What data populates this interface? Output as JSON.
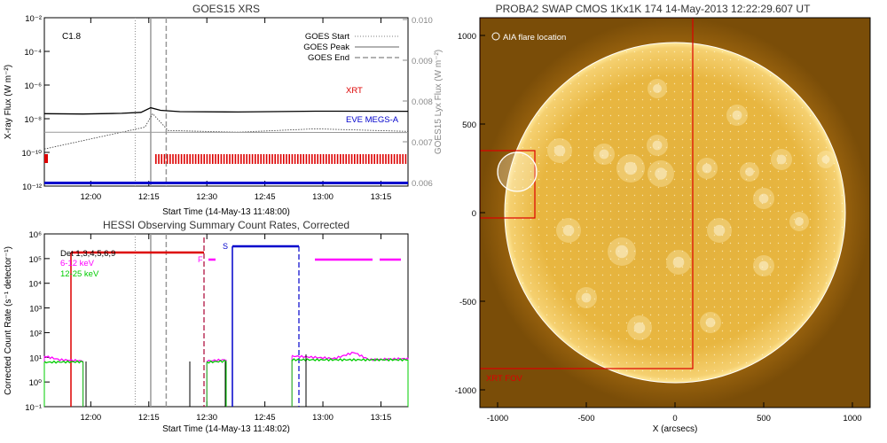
{
  "chart_data": [
    {
      "type": "line",
      "title": "GOES15 XRS",
      "xlabel": "Start Time (14-May-13 11:48:00)",
      "ylabel": "X-ray Flux (W m⁻²)",
      "ylabel_right": "GOES15 Lyx Flux (W m⁻²)",
      "xticks": [
        "12:00",
        "12:15",
        "12:30",
        "12:45",
        "13:00",
        "13:15"
      ],
      "xtick_minutes": [
        12,
        27,
        42,
        57,
        72,
        87
      ],
      "xlim_minutes": [
        0,
        94
      ],
      "ylog_range": [
        -12,
        -2
      ],
      "yticks": [
        "10⁻¹²",
        "10⁻¹⁰",
        "10⁻⁸",
        "10⁻⁶",
        "10⁻⁴",
        "10⁻²"
      ],
      "yticks_right": [
        "0.006",
        "0.007",
        "0.008",
        "0.009",
        "0.010"
      ],
      "annotation_class": "C1.8",
      "legend": [
        {
          "name": "GOES Start",
          "style": "dotted"
        },
        {
          "name": "GOES Peak",
          "style": "solid"
        },
        {
          "name": "GOES End",
          "style": "dashed"
        }
      ],
      "event_lines_minutes": {
        "start": 23.5,
        "peak": 27.5,
        "end": 31.5
      },
      "labels": {
        "xrt": "XRT",
        "eve": "EVE MEGS-A"
      },
      "colors": {
        "xrt": "#dd0000",
        "eve": "#0000cc",
        "event": "#999999"
      },
      "series": [
        {
          "name": "XRT",
          "points": [
            [
              0,
              -7.7
            ],
            [
              10,
              -7.72
            ],
            [
              20,
              -7.68
            ],
            [
              25,
              -7.62
            ],
            [
              27.5,
              -7.35
            ],
            [
              30,
              -7.5
            ],
            [
              35,
              -7.58
            ],
            [
              50,
              -7.6
            ],
            [
              70,
              -7.55
            ],
            [
              94,
              -7.56
            ]
          ]
        },
        {
          "name": "EVE MEGS-A",
          "points": [
            [
              0,
              -9.8
            ],
            [
              10,
              -9.3
            ],
            [
              20,
              -8.8
            ],
            [
              26,
              -8.5
            ],
            [
              28,
              -7.7
            ],
            [
              32,
              -8.7
            ],
            [
              50,
              -8.8
            ],
            [
              70,
              -8.6
            ],
            [
              94,
              -8.75
            ]
          ]
        }
      ]
    },
    {
      "type": "line",
      "title": "HESSI Observing Summary Count Rates, Corrected",
      "xlabel": "Start Time (14-May-13 11:48:02)",
      "ylabel": "Corrected Count Rate (s⁻¹ detector⁻¹)",
      "xticks": [
        "12:00",
        "12:15",
        "12:30",
        "12:45",
        "13:00",
        "13:15"
      ],
      "xtick_minutes": [
        12,
        27,
        42,
        57,
        72,
        87
      ],
      "xlim_minutes": [
        0,
        94
      ],
      "ylog_range": [
        -1,
        6
      ],
      "yticks": [
        "10⁻¹",
        "10⁰",
        "10¹",
        "10²",
        "10³",
        "10⁴",
        "10⁵",
        "10⁶"
      ],
      "legend": [
        {
          "name": "Det 1,3,4,5,6,9",
          "color": "#000000"
        },
        {
          "name": "6-12 keV",
          "color": "#ff00ff"
        },
        {
          "name": "12-25 keV",
          "color": "#00cc00"
        }
      ],
      "flags": {
        "f": "F",
        "s": "S"
      },
      "colors": {
        "det": "#000000",
        "low": "#ff00ff",
        "high": "#00cc00",
        "attenuator": "#dd0000",
        "saa": "#0000cc"
      },
      "series": [
        {
          "name": "6-12 keV",
          "segments": [
            [
              [
                0,
                1.05
              ],
              [
                4,
                0.9
              ],
              [
                10,
                0.85
              ]
            ],
            [
              [
                42,
                0.85
              ],
              [
                47,
                0.9
              ]
            ],
            [
              [
                64,
                1.05
              ],
              [
                75,
                0.95
              ],
              [
                80,
                1.2
              ],
              [
                84,
                0.9
              ],
              [
                94,
                0.95
              ]
            ]
          ]
        },
        {
          "name": "12-25 keV",
          "segments": [
            [
              [
                0,
                0.8
              ],
              [
                10,
                0.82
              ]
            ],
            [
              [
                42,
                0.8
              ],
              [
                47,
                0.85
              ]
            ],
            [
              [
                64,
                0.9
              ],
              [
                94,
                0.9
              ]
            ]
          ]
        }
      ]
    },
    {
      "type": "image",
      "title": "PROBA2 SWAP CMOS 1Kx1K 174 14-May-2013 12:22:29.607 UT",
      "xlabel": "X (arcsecs)",
      "xticks": [
        "-1000",
        "-500",
        "0",
        "500",
        "1000"
      ],
      "yticks": [
        "-1000",
        "-500",
        "0",
        "500",
        "1000"
      ],
      "xlim": [
        -1100,
        1100
      ],
      "ylim": [
        -1100,
        1100
      ],
      "annotation_aia": "AIA flare location",
      "annotation_fov": "XRT FOV",
      "disk_radius_arcsec": 960,
      "xrt_fov": [
        -1100,
        -880,
        100,
        1100
      ],
      "flare_box": [
        -1100,
        -30,
        -790,
        350
      ],
      "flare_circle": {
        "x": -890,
        "y": 230,
        "r": 110
      },
      "colors": {
        "sun": "#e8b640",
        "corona": "#b07010",
        "box": "#dd0000",
        "circle": "#ffffff"
      }
    }
  ]
}
